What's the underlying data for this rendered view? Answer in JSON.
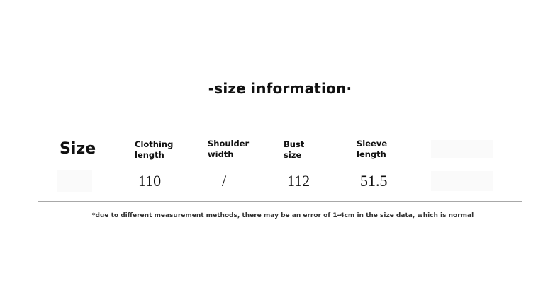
{
  "title": "-size information·",
  "table": {
    "row_label": "Size",
    "columns": [
      {
        "header_line1": "Clothing",
        "header_line2": "length",
        "value": "110"
      },
      {
        "header_line1": "Shoulder",
        "header_line2": "width",
        "value": "/"
      },
      {
        "header_line1": "Bust",
        "header_line2": "size",
        "value": "112"
      },
      {
        "header_line1": "Sleeve",
        "header_line2": "length",
        "value": "51.5"
      }
    ]
  },
  "note": "*due to different measurement methods, there may be an error of 1-4cm in the size data, which is normal"
}
